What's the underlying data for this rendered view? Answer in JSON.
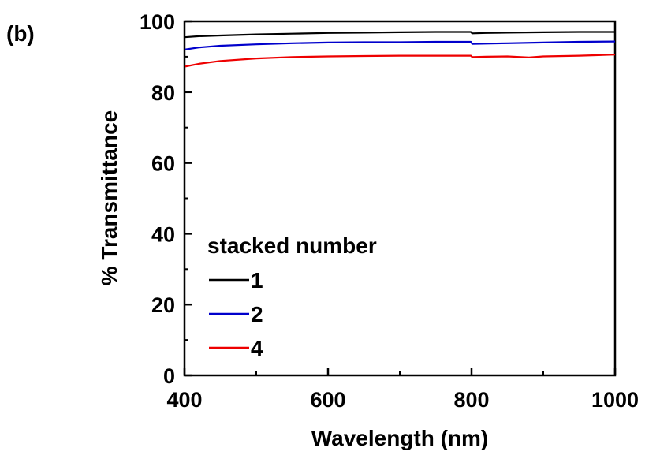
{
  "panel_label": "(b)",
  "chart_data": {
    "type": "line",
    "xlabel": "Wavelength (nm)",
    "ylabel": "% Transmittance",
    "xlim": [
      400,
      1000
    ],
    "ylim": [
      0,
      100
    ],
    "x_ticks": [
      400,
      600,
      800,
      1000
    ],
    "y_ticks": [
      0,
      20,
      40,
      60,
      80,
      100
    ],
    "x_tick_labels": [
      "400",
      "600",
      "800",
      "1000"
    ],
    "y_tick_labels": [
      "0",
      "20",
      "40",
      "60",
      "80",
      "100"
    ],
    "grid": false,
    "legend": {
      "title": "stacked number",
      "placement": "lower-left"
    },
    "series": [
      {
        "name": "1",
        "color": "#000000",
        "x": [
          400,
          420,
          450,
          500,
          550,
          600,
          650,
          700,
          750,
          780,
          799,
          801,
          820,
          850,
          900,
          950,
          1000
        ],
        "y": [
          95.5,
          95.8,
          96.0,
          96.3,
          96.5,
          96.7,
          96.8,
          96.9,
          97.0,
          97.0,
          97.0,
          96.6,
          96.7,
          96.8,
          96.9,
          97.0,
          97.0
        ]
      },
      {
        "name": "2",
        "color": "#0000cc",
        "x": [
          400,
          420,
          450,
          500,
          550,
          600,
          650,
          700,
          750,
          780,
          799,
          801,
          820,
          850,
          900,
          950,
          1000
        ],
        "y": [
          92.0,
          92.6,
          93.1,
          93.5,
          93.8,
          94.0,
          94.1,
          94.1,
          94.2,
          94.2,
          94.2,
          93.6,
          93.7,
          93.8,
          94.0,
          94.2,
          94.3
        ]
      },
      {
        "name": "4",
        "color": "#ee0000",
        "x": [
          400,
          420,
          450,
          500,
          550,
          600,
          650,
          700,
          750,
          780,
          799,
          801,
          820,
          850,
          880,
          900,
          950,
          1000
        ],
        "y": [
          87.2,
          88.0,
          88.8,
          89.5,
          89.9,
          90.1,
          90.2,
          90.3,
          90.3,
          90.3,
          90.3,
          89.9,
          90.0,
          90.1,
          89.8,
          90.1,
          90.3,
          90.6
        ]
      }
    ]
  }
}
